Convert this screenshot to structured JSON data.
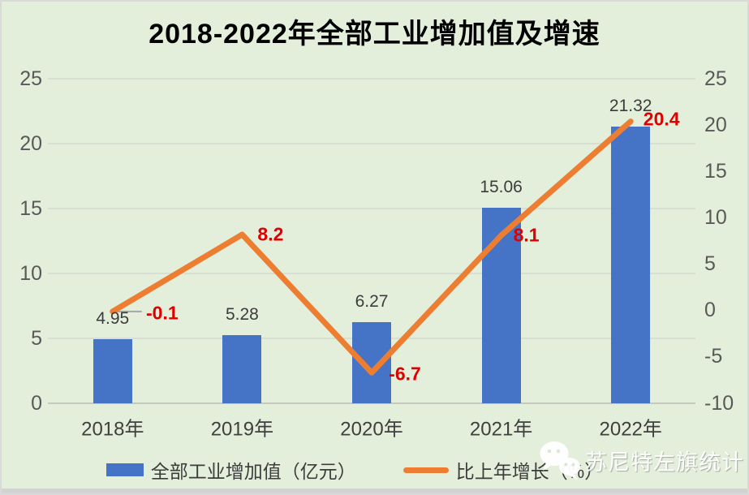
{
  "title": "2018-2022年全部工业增加值及增速",
  "chart_data": {
    "type": "combo-bar-line",
    "title": "2018-2022年全部工业增加值及增速",
    "categories": [
      "2018年",
      "2019年",
      "2020年",
      "2021年",
      "2022年"
    ],
    "series": [
      {
        "name": "全部工业增加值（亿元）",
        "type": "bar",
        "axis": "left",
        "color": "#4573c5",
        "values": [
          4.95,
          5.28,
          6.27,
          15.06,
          21.32
        ],
        "labels": [
          "4.95",
          "5.28",
          "6.27",
          "15.06",
          "21.32"
        ]
      },
      {
        "name": "比上年增长（%）",
        "type": "line",
        "axis": "right",
        "color": "#ed7d31",
        "values": [
          -0.1,
          8.2,
          -6.7,
          8.1,
          20.4
        ],
        "labels": [
          "-0.1",
          "8.2",
          "-6.7",
          "8.1",
          "20.4"
        ],
        "label_color": "#df0000"
      }
    ],
    "left_axis": {
      "min": 0,
      "max": 25,
      "step": 5,
      "ticks": [
        "25",
        "20",
        "15",
        "10",
        "5",
        "0"
      ]
    },
    "right_axis": {
      "min": -10,
      "max": 25,
      "step": 5,
      "ticks": [
        "25",
        "20",
        "15",
        "10",
        "5",
        "0",
        "-5",
        "-10"
      ]
    },
    "grid": true,
    "legend_position": "bottom"
  },
  "watermark": {
    "text": "苏尼特左旗统计"
  }
}
